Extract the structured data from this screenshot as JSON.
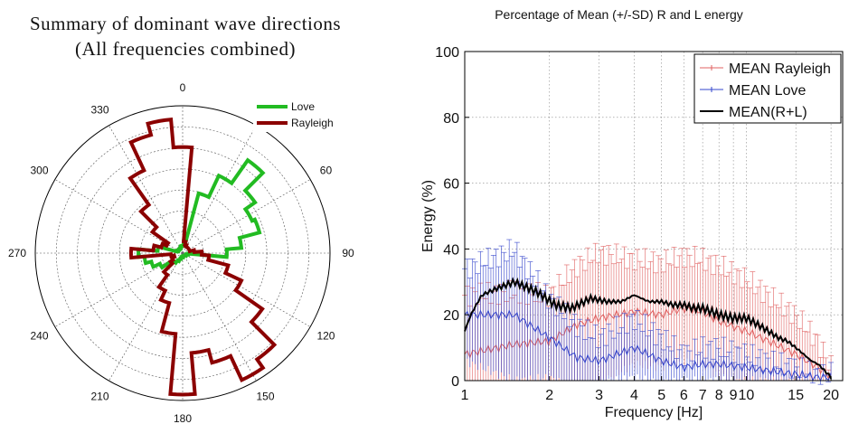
{
  "chart_data": [
    {
      "type": "polar",
      "title": "Summary of dominant wave directions",
      "subtitle": "(All frequencies combined)",
      "angle_ticks": [
        "0",
        "30",
        "60",
        "90",
        "120",
        "150",
        "180",
        "210",
        "240",
        "270",
        "300",
        "330"
      ],
      "legend": [
        {
          "name": "Love",
          "color": "#22bb22"
        },
        {
          "name": "Rayleigh",
          "color": "#8b0000"
        }
      ],
      "series": [
        {
          "name": "Love",
          "color": "#22bb22",
          "bins_deg": [
            0,
            10,
            20,
            30,
            40,
            50,
            60,
            70,
            80,
            90,
            100,
            110,
            120,
            130,
            140,
            150,
            160,
            170,
            180,
            190,
            200,
            210,
            220,
            230,
            240,
            250,
            260,
            270,
            280,
            290,
            300,
            310,
            320,
            330,
            340,
            350
          ],
          "radius_frac": [
            0.05,
            0.08,
            0.42,
            0.58,
            0.77,
            0.6,
            0.52,
            0.54,
            0.4,
            0.3,
            0.04,
            0.03,
            0.03,
            0.02,
            0.02,
            0.02,
            0.02,
            0.02,
            0.03,
            0.03,
            0.04,
            0.06,
            0.08,
            0.1,
            0.17,
            0.22,
            0.26,
            0.3,
            0.17,
            0.04,
            0.03,
            0.03,
            0.03,
            0.04,
            0.04,
            0.05
          ]
        },
        {
          "name": "Rayleigh",
          "color": "#8b0000",
          "bins_deg": [
            0,
            10,
            20,
            30,
            40,
            50,
            60,
            70,
            80,
            90,
            100,
            110,
            120,
            130,
            140,
            150,
            160,
            170,
            180,
            190,
            200,
            210,
            220,
            230,
            240,
            250,
            260,
            270,
            280,
            290,
            300,
            310,
            320,
            330,
            340,
            350
          ],
          "radius_frac": [
            0.72,
            0.08,
            0.06,
            0.05,
            0.05,
            0.05,
            0.05,
            0.05,
            0.08,
            0.13,
            0.18,
            0.32,
            0.44,
            0.66,
            0.88,
            0.95,
            0.77,
            0.68,
            0.96,
            0.55,
            0.35,
            0.28,
            0.18,
            0.1,
            0.08,
            0.06,
            0.08,
            0.35,
            0.2,
            0.15,
            0.12,
            0.25,
            0.4,
            0.62,
            0.83,
            0.91
          ]
        }
      ]
    },
    {
      "type": "line",
      "title": "Percentage of Mean (+/-SD) R and L energy",
      "xlabel": "Frequency [Hz]",
      "ylabel": "Energy (%)",
      "xscale": "log",
      "xlim": [
        1,
        22
      ],
      "ylim": [
        0,
        100
      ],
      "yticks": [
        0,
        20,
        40,
        60,
        80,
        100
      ],
      "xticks": [
        1,
        2,
        3,
        4,
        5,
        6,
        7,
        8,
        9,
        10,
        15,
        20
      ],
      "xtick_labels": [
        "1",
        "2",
        "3",
        "4",
        "5",
        "6",
        "7",
        "8",
        "9",
        "10",
        "15",
        "20"
      ],
      "grid": true,
      "legend_position": "top-right",
      "series": [
        {
          "name": "MEAN Rayleigh",
          "color": "#e06060",
          "style": "errorbar",
          "x": [
            1,
            1.5,
            2,
            2.5,
            3,
            4,
            5,
            6,
            7,
            8,
            10,
            12,
            15,
            18,
            20
          ],
          "y": [
            8,
            11,
            12,
            17,
            19,
            21,
            20,
            22,
            21,
            18,
            15,
            12,
            8,
            4,
            1
          ],
          "sd": [
            18,
            16,
            14,
            18,
            20,
            16,
            16,
            16,
            16,
            17,
            16,
            14,
            12,
            8,
            3
          ]
        },
        {
          "name": "MEAN Love",
          "color": "#3344cc",
          "style": "errorbar",
          "x": [
            1,
            1.5,
            2,
            2.5,
            3,
            4,
            5,
            6,
            7,
            8,
            10,
            12,
            15,
            18,
            20
          ],
          "y": [
            20,
            20,
            13,
            7,
            6,
            10,
            6,
            4,
            5,
            5,
            4,
            3,
            2,
            1,
            1
          ],
          "sd": [
            14,
            20,
            12,
            10,
            7,
            9,
            7,
            4,
            5,
            5,
            4,
            3,
            2,
            1,
            1
          ]
        },
        {
          "name": "MEAN(R+L)",
          "color": "#000000",
          "style": "line",
          "x": [
            1,
            1.05,
            1.15,
            1.3,
            1.5,
            1.8,
            2.1,
            2.4,
            2.8,
            3.2,
            3.6,
            4,
            4.5,
            5,
            5.5,
            6,
            6.5,
            7,
            7.5,
            8,
            9,
            10,
            11,
            12,
            13,
            14,
            15,
            16,
            17,
            18,
            19,
            20
          ],
          "y": [
            15,
            20,
            26,
            28,
            30,
            27,
            23,
            22,
            25,
            24,
            24,
            26,
            24,
            24,
            23,
            23,
            22,
            22,
            21,
            20,
            19,
            19,
            17,
            15,
            13,
            12,
            10,
            8,
            6,
            5,
            3,
            1
          ]
        }
      ]
    }
  ]
}
